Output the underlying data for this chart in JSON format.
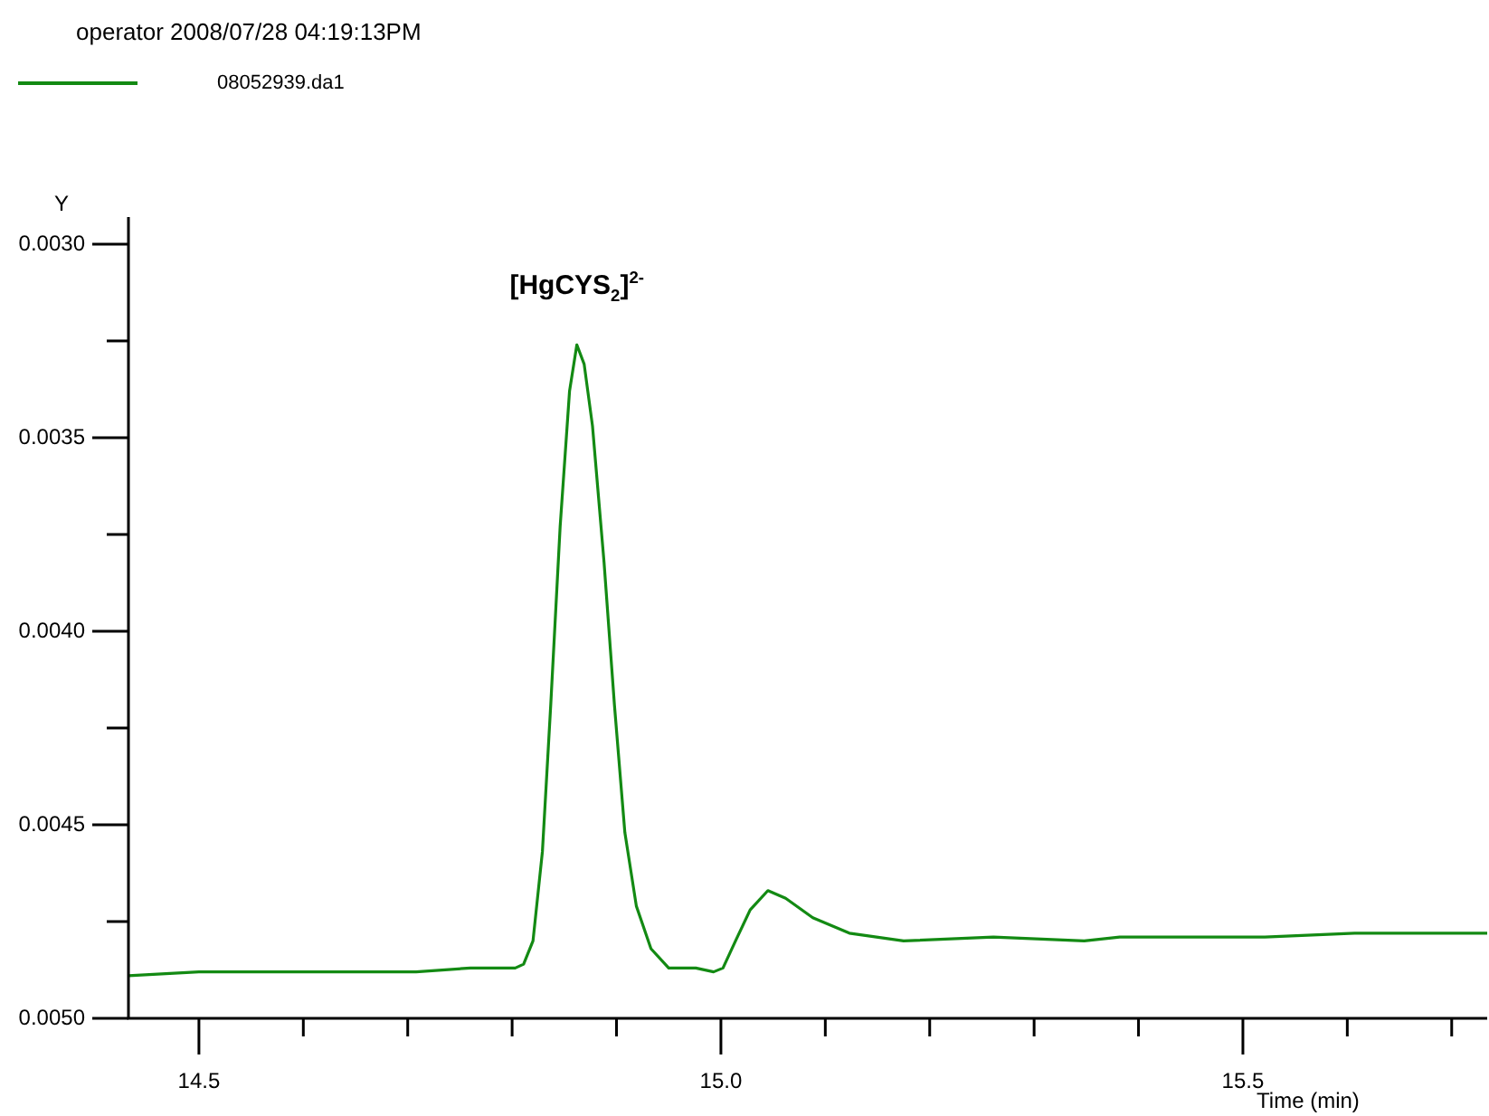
{
  "chart_data": {
    "type": "line",
    "title": "operator 2008/07/28 04:19:13PM",
    "xlabel": "Time (min)",
    "ylabel": "Y",
    "legend": "top left",
    "marker": "none",
    "line_style": "solid",
    "xlim": [
      14.4325,
      15.734
    ],
    "ylim": [
      0.005,
      0.00293
    ],
    "xticks": [
      {
        "value": 14.5,
        "label": "14.5"
      },
      {
        "value": 14.6,
        "label": null
      },
      {
        "value": 14.7,
        "label": null
      },
      {
        "value": 14.8,
        "label": null
      },
      {
        "value": 14.9,
        "label": null
      },
      {
        "value": 15.0,
        "label": "15.0"
      },
      {
        "value": 15.1,
        "label": null
      },
      {
        "value": 15.2,
        "label": null
      },
      {
        "value": 15.3,
        "label": null
      },
      {
        "value": 15.4,
        "label": null
      },
      {
        "value": 15.5,
        "label": "15.5"
      },
      {
        "value": 15.6,
        "label": null
      },
      {
        "value": 15.7,
        "label": null
      }
    ],
    "yticks": [
      {
        "value": 0.003,
        "label": "0.0030"
      },
      {
        "value": 0.00325,
        "label": null
      },
      {
        "value": 0.0035,
        "label": "0.0035"
      },
      {
        "value": 0.00375,
        "label": null
      },
      {
        "value": 0.004,
        "label": "0.0040"
      },
      {
        "value": 0.00425,
        "label": null
      },
      {
        "value": 0.0045,
        "label": "0.0045"
      },
      {
        "value": 0.00475,
        "label": null
      },
      {
        "value": 0.005,
        "label": "0.0050"
      }
    ],
    "annotations": [
      {
        "text": "[HgCYS$_{2}$]$^{2-}$",
        "x": 14.862,
        "y": 0.00326
      }
    ],
    "x": [
      14.4325,
      14.5,
      14.569,
      14.656,
      14.708,
      14.76,
      14.803,
      14.811,
      14.82,
      14.829,
      14.837,
      14.846,
      14.855,
      14.862,
      14.869,
      14.877,
      14.888,
      14.898,
      14.908,
      14.919,
      14.933,
      14.95,
      14.976,
      14.993,
      15.002,
      15.014,
      15.028,
      15.045,
      15.062,
      15.088,
      15.123,
      15.175,
      15.261,
      15.348,
      15.382,
      15.434,
      15.521,
      15.607,
      15.734
    ],
    "series": [
      {
        "name": "08052939.da1",
        "color": "#138a13",
        "values": [
          0.00489,
          0.00488,
          0.00488,
          0.00488,
          0.00488,
          0.00487,
          0.00487,
          0.00486,
          0.0048,
          0.00457,
          0.00419,
          0.00373,
          0.00338,
          0.00326,
          0.00331,
          0.00347,
          0.00382,
          0.00419,
          0.00452,
          0.00471,
          0.00482,
          0.00487,
          0.00487,
          0.00488,
          0.00487,
          0.0048,
          0.00472,
          0.00467,
          0.00469,
          0.00474,
          0.00478,
          0.0048,
          0.00479,
          0.0048,
          0.00479,
          0.00479,
          0.00479,
          0.00478,
          0.00478
        ]
      }
    ]
  }
}
